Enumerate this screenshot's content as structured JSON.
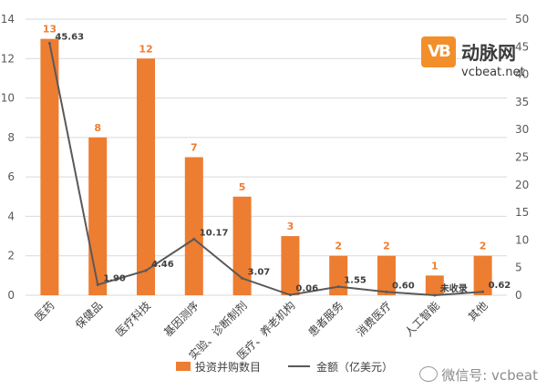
{
  "chart_data": {
    "type": "bar",
    "categories": [
      "医药",
      "保健品",
      "医疗科技",
      "基因测序",
      "实验、诊断制剂",
      "医疗、养老机构",
      "患者服务",
      "消费医疗",
      "人工智能",
      "其他"
    ],
    "series": [
      {
        "name": "投资并购数目",
        "type": "bar",
        "axis": "left",
        "values": [
          13,
          8,
          12,
          7,
          5,
          3,
          2,
          2,
          1,
          2
        ],
        "labels": [
          "13",
          "8",
          "12",
          "7",
          "5",
          "3",
          "2",
          "2",
          "1",
          "2"
        ]
      },
      {
        "name": "金额（亿美元）",
        "type": "line",
        "axis": "right",
        "values": [
          45.63,
          1.9,
          4.46,
          10.17,
          3.07,
          0.06,
          1.55,
          0.6,
          0,
          0.62
        ],
        "labels": [
          "45.63",
          "1.90",
          "4.46",
          "10.17",
          "3.07",
          "0.06",
          "1.55",
          "0.60",
          "未收录",
          "0.62"
        ]
      }
    ],
    "y_left": {
      "min": 0,
      "max": 14,
      "ticks": [
        "0",
        "2",
        "4",
        "6",
        "8",
        "10",
        "12",
        "14"
      ]
    },
    "y_right": {
      "min": 0,
      "max": 50,
      "ticks": [
        "0",
        "5",
        "10",
        "15",
        "20",
        "25",
        "30",
        "35",
        "40",
        "45",
        "50"
      ]
    },
    "legend_position": "bottom",
    "colors": {
      "bar": "#ed7d31",
      "line": "#595959",
      "grid": "#d9d9d9"
    }
  },
  "logo": {
    "mark": "VB",
    "name": "动脉网",
    "url": "vcbeat.net"
  },
  "watermark": {
    "text": "微信号: vcbeat"
  }
}
